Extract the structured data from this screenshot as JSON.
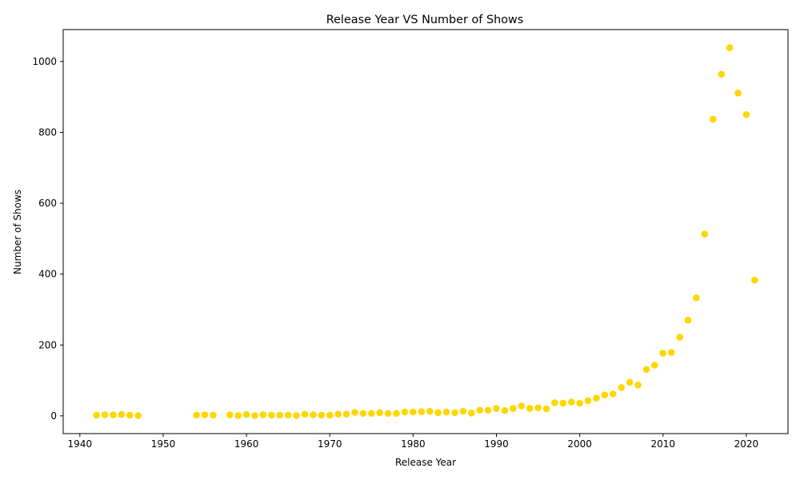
{
  "chart_data": {
    "type": "scatter",
    "title": "Release Year VS Number of Shows",
    "xlabel": "Release Year",
    "ylabel": "Number of Shows",
    "xlim": [
      1938,
      2025
    ],
    "ylim": [
      -50,
      1090
    ],
    "xticks": [
      1940,
      1950,
      1960,
      1970,
      1980,
      1990,
      2000,
      2010,
      2020
    ],
    "yticks": [
      0,
      200,
      400,
      600,
      800,
      1000
    ],
    "grid": false,
    "legend": "none",
    "marker_color": "#FFD700",
    "points": [
      {
        "x": 1942,
        "y": 2
      },
      {
        "x": 1943,
        "y": 3
      },
      {
        "x": 1944,
        "y": 3
      },
      {
        "x": 1945,
        "y": 4
      },
      {
        "x": 1946,
        "y": 2
      },
      {
        "x": 1947,
        "y": 1
      },
      {
        "x": 1954,
        "y": 2
      },
      {
        "x": 1955,
        "y": 3
      },
      {
        "x": 1956,
        "y": 2
      },
      {
        "x": 1958,
        "y": 3
      },
      {
        "x": 1959,
        "y": 1
      },
      {
        "x": 1960,
        "y": 4
      },
      {
        "x": 1961,
        "y": 1
      },
      {
        "x": 1962,
        "y": 3
      },
      {
        "x": 1963,
        "y": 2
      },
      {
        "x": 1964,
        "y": 2
      },
      {
        "x": 1965,
        "y": 2
      },
      {
        "x": 1966,
        "y": 1
      },
      {
        "x": 1967,
        "y": 5
      },
      {
        "x": 1968,
        "y": 3
      },
      {
        "x": 1969,
        "y": 2
      },
      {
        "x": 1970,
        "y": 2
      },
      {
        "x": 1971,
        "y": 5
      },
      {
        "x": 1972,
        "y": 5
      },
      {
        "x": 1973,
        "y": 10
      },
      {
        "x": 1974,
        "y": 7
      },
      {
        "x": 1975,
        "y": 7
      },
      {
        "x": 1976,
        "y": 9
      },
      {
        "x": 1977,
        "y": 7
      },
      {
        "x": 1978,
        "y": 7
      },
      {
        "x": 1979,
        "y": 11
      },
      {
        "x": 1980,
        "y": 11
      },
      {
        "x": 1981,
        "y": 12
      },
      {
        "x": 1982,
        "y": 13
      },
      {
        "x": 1983,
        "y": 9
      },
      {
        "x": 1984,
        "y": 11
      },
      {
        "x": 1985,
        "y": 9
      },
      {
        "x": 1986,
        "y": 13
      },
      {
        "x": 1987,
        "y": 8
      },
      {
        "x": 1988,
        "y": 16
      },
      {
        "x": 1989,
        "y": 16
      },
      {
        "x": 1990,
        "y": 21
      },
      {
        "x": 1991,
        "y": 15
      },
      {
        "x": 1992,
        "y": 21
      },
      {
        "x": 1993,
        "y": 28
      },
      {
        "x": 1994,
        "y": 21
      },
      {
        "x": 1995,
        "y": 23
      },
      {
        "x": 1996,
        "y": 20
      },
      {
        "x": 1997,
        "y": 37
      },
      {
        "x": 1998,
        "y": 36
      },
      {
        "x": 1999,
        "y": 39
      },
      {
        "x": 2000,
        "y": 36
      },
      {
        "x": 2001,
        "y": 43
      },
      {
        "x": 2002,
        "y": 50
      },
      {
        "x": 2003,
        "y": 59
      },
      {
        "x": 2004,
        "y": 62
      },
      {
        "x": 2005,
        "y": 80
      },
      {
        "x": 2006,
        "y": 95
      },
      {
        "x": 2007,
        "y": 87
      },
      {
        "x": 2008,
        "y": 131
      },
      {
        "x": 2009,
        "y": 143
      },
      {
        "x": 2010,
        "y": 177
      },
      {
        "x": 2011,
        "y": 179
      },
      {
        "x": 2012,
        "y": 222
      },
      {
        "x": 2013,
        "y": 270
      },
      {
        "x": 2014,
        "y": 333
      },
      {
        "x": 2015,
        "y": 513
      },
      {
        "x": 2016,
        "y": 837
      },
      {
        "x": 2017,
        "y": 964
      },
      {
        "x": 2018,
        "y": 1039
      },
      {
        "x": 2019,
        "y": 911
      },
      {
        "x": 2020,
        "y": 850
      },
      {
        "x": 2021,
        "y": 383
      }
    ]
  }
}
